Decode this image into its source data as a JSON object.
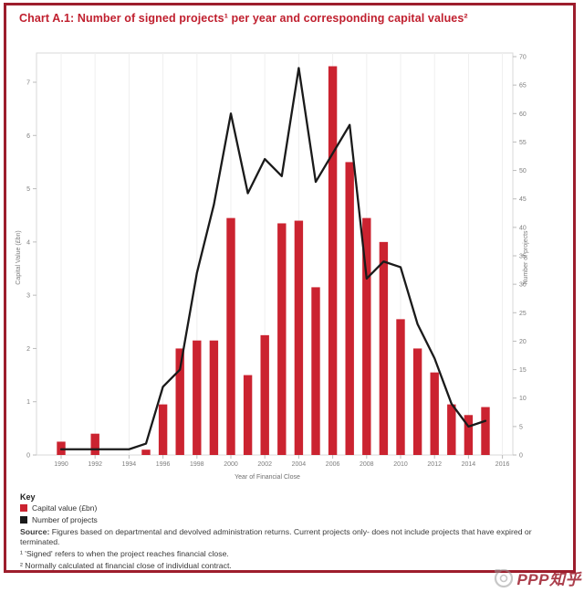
{
  "page": {
    "title": "Chart A.1: Number of signed projects¹ per year and corresponding capital values²",
    "watermark_text": "PPP知乎",
    "colors": {
      "frame_border": "#9d1d2c",
      "title_red": "#c0202f",
      "bar_red": "#cb2330",
      "line_black": "#1a1a1a",
      "tick_text": "#7d7d7d",
      "watermark_red": "#9d1d2c"
    }
  },
  "key": {
    "heading": "Key",
    "items": [
      {
        "label": "Capital value (£bn)",
        "color": "#cb2330"
      },
      {
        "label": "Number of projects",
        "color": "#1a1a1a"
      }
    ]
  },
  "notes": {
    "source_label": "Source:",
    "source_text": " Figures based on departmental and devolved administration returns. Current projects only- does not include projects that have expired or terminated.",
    "footnote1": "¹ 'Signed' refers to when the project reaches financial close.",
    "footnote2": "² Normally calculated at financial close of individual contract."
  },
  "chart_data": {
    "type": "bar+line",
    "title": "Chart A.1: Number of signed projects per year and corresponding capital values",
    "x": [
      1990,
      1991,
      1992,
      1993,
      1994,
      1995,
      1996,
      1997,
      1998,
      1999,
      2000,
      2001,
      2002,
      2003,
      2004,
      2005,
      2006,
      2007,
      2008,
      2009,
      2010,
      2011,
      2012,
      2013,
      2014,
      2015
    ],
    "series": [
      {
        "name": "Capital value (£bn)",
        "type": "bar",
        "axis": "left",
        "color": "#cb2330",
        "values": [
          0.25,
          0,
          0.4,
          0,
          0,
          0.1,
          0.95,
          2.0,
          2.15,
          2.15,
          4.45,
          1.5,
          2.25,
          4.35,
          4.4,
          3.15,
          7.3,
          5.5,
          4.45,
          4.0,
          2.55,
          2.0,
          1.55,
          0.95,
          0.75,
          0.9
        ]
      },
      {
        "name": "Number of projects",
        "type": "line",
        "axis": "right",
        "color": "#1a1a1a",
        "values": [
          1,
          1,
          1,
          1,
          1,
          2,
          12,
          15,
          32,
          44,
          60,
          46,
          52,
          49,
          68,
          48,
          53,
          58,
          31,
          34,
          33,
          23,
          17,
          9,
          5,
          6
        ]
      }
    ],
    "xlabel": "Year of Financial Close",
    "x_tick_labels": [
      1990,
      1992,
      1994,
      1996,
      1998,
      2000,
      2002,
      2004,
      2006,
      2008,
      2010,
      2012,
      2014,
      2016
    ],
    "left_axis": {
      "label": "Capital Value (£bn)",
      "min": 0,
      "max": 7,
      "step": 1
    },
    "right_axis": {
      "label": "Number of projects",
      "min": 0,
      "max": 70,
      "step": 5
    },
    "grid": "faint-vertical-at-even-years",
    "legend_position": "bottom-left-key-block"
  }
}
